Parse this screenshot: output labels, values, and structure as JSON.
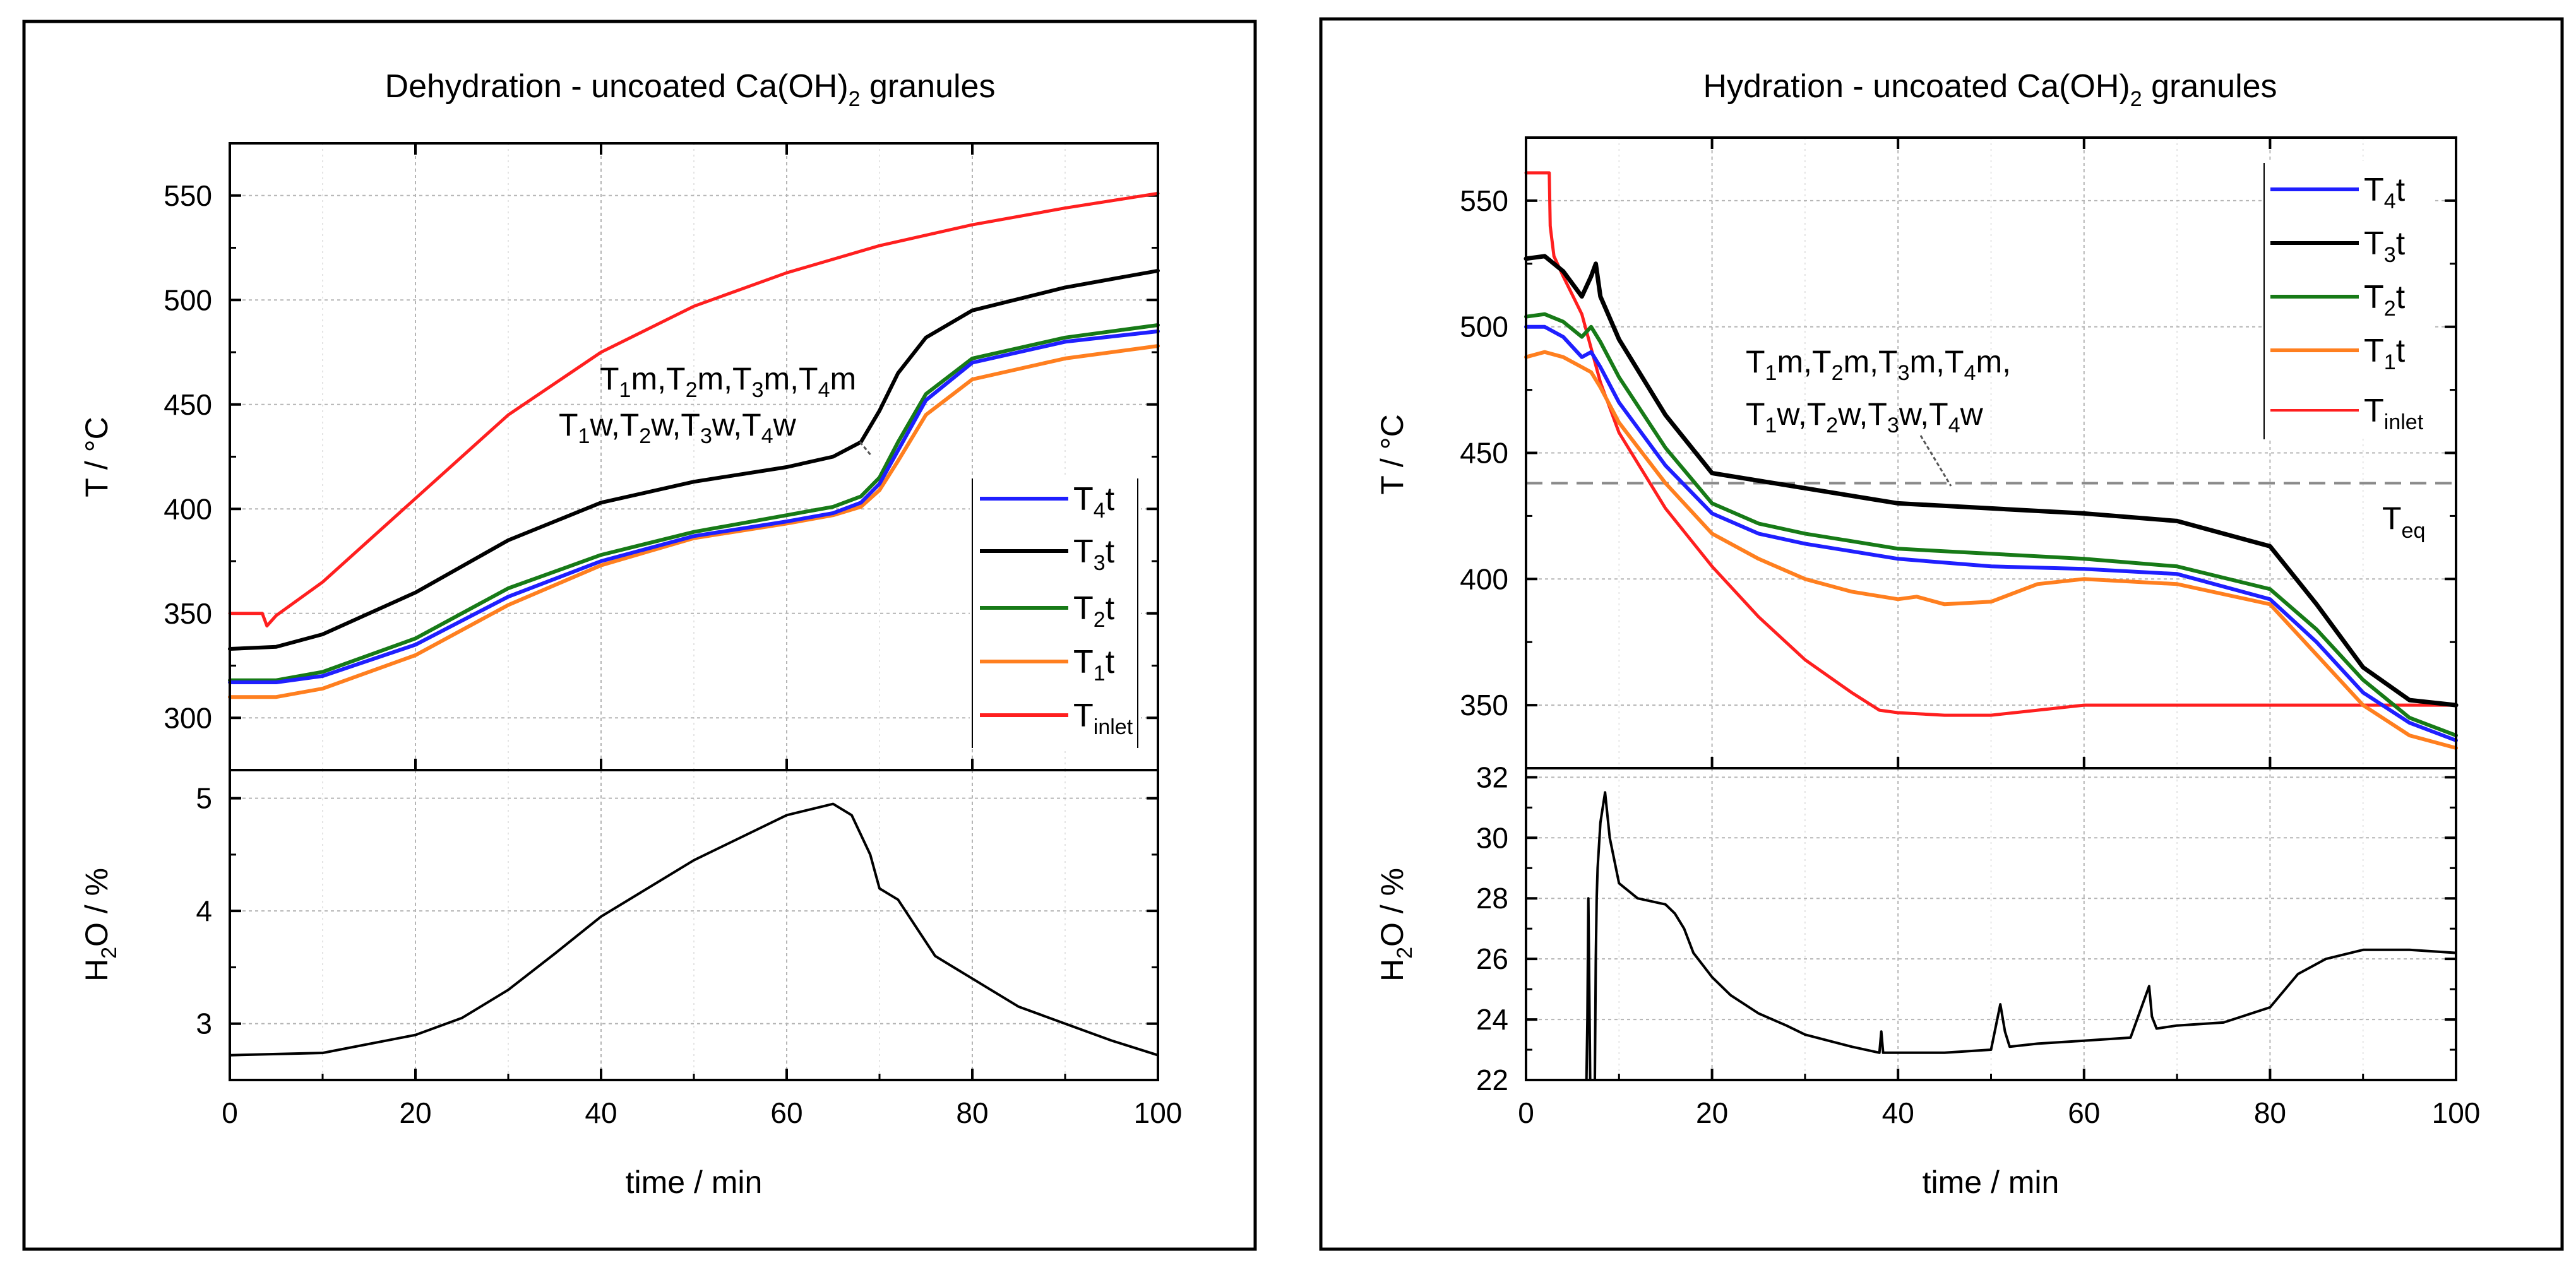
{
  "chart_data": [
    {
      "type": "line",
      "title": "Dehydration - uncoated Ca(OH)2 granules",
      "xlabel": "time / min",
      "xlim": [
        0,
        100
      ],
      "xticks": [
        0,
        20,
        40,
        60,
        80,
        100
      ],
      "panels": [
        {
          "ylabel": "T / °C",
          "ylim": [
            275,
            575
          ],
          "yticks": [
            300,
            350,
            400,
            450,
            500,
            550
          ],
          "grid": true,
          "legend_position": "middle-right",
          "annotation": {
            "line1": [
              "T1m",
              "T2m",
              "T3m",
              "T4m"
            ],
            "line2": [
              "T1w",
              "T2w",
              "T3w",
              "T4w"
            ]
          },
          "series": [
            {
              "name": "T4t",
              "color": "#1f1fff",
              "x": [
                0,
                5,
                10,
                20,
                30,
                40,
                50,
                60,
                65,
                68,
                70,
                72,
                75,
                80,
                90,
                100
              ],
              "y": [
                317,
                317,
                320,
                335,
                358,
                375,
                387,
                394,
                398,
                403,
                412,
                428,
                452,
                470,
                480,
                485
              ]
            },
            {
              "name": "T3t",
              "color": "#000000",
              "x": [
                0,
                5,
                10,
                20,
                30,
                40,
                50,
                60,
                65,
                68,
                70,
                72,
                75,
                80,
                90,
                100
              ],
              "y": [
                333,
                334,
                340,
                360,
                385,
                403,
                413,
                420,
                425,
                432,
                447,
                465,
                482,
                495,
                506,
                514
              ]
            },
            {
              "name": "T2t",
              "color": "#177a17",
              "x": [
                0,
                5,
                10,
                20,
                30,
                40,
                50,
                60,
                65,
                68,
                70,
                72,
                75,
                80,
                90,
                100
              ],
              "y": [
                318,
                318,
                322,
                338,
                362,
                378,
                389,
                397,
                401,
                406,
                415,
                432,
                455,
                472,
                482,
                488
              ]
            },
            {
              "name": "T1t",
              "color": "#ff7f1f",
              "x": [
                0,
                5,
                10,
                20,
                30,
                40,
                50,
                60,
                65,
                68,
                70,
                72,
                75,
                80,
                90,
                100
              ],
              "y": [
                310,
                310,
                314,
                330,
                354,
                373,
                386,
                393,
                397,
                401,
                409,
                423,
                445,
                462,
                472,
                478
              ]
            },
            {
              "name": "Tinlet",
              "color": "#ff1f1f",
              "x": [
                0,
                3.5,
                4,
                5,
                10,
                20,
                30,
                40,
                50,
                60,
                70,
                80,
                90,
                100
              ],
              "y": [
                350,
                350,
                344,
                349,
                365,
                405,
                445,
                475,
                497,
                513,
                526,
                536,
                544,
                551
              ]
            }
          ]
        },
        {
          "ylabel": "H2O / %",
          "ylim": [
            2.5,
            5.25
          ],
          "yticks": [
            3,
            4,
            5
          ],
          "grid": true,
          "series": [
            {
              "name": "H2O",
              "color": "#000000",
              "x": [
                0,
                10,
                20,
                25,
                30,
                35,
                40,
                50,
                60,
                65,
                67,
                69,
                70,
                71,
                72,
                74,
                76,
                78,
                79,
                80,
                82,
                85,
                90,
                95,
                100
              ],
              "y": [
                2.72,
                2.74,
                2.9,
                3.05,
                3.3,
                3.62,
                3.95,
                4.45,
                4.85,
                4.95,
                4.85,
                4.5,
                4.2,
                4.15,
                4.1,
                3.85,
                3.6,
                3.5,
                3.45,
                3.4,
                3.3,
                3.15,
                3.0,
                2.85,
                2.72
              ]
            }
          ]
        }
      ]
    },
    {
      "type": "line",
      "title": "Hydration - uncoated Ca(OH)2 granules",
      "xlabel": "time / min",
      "xlim": [
        0,
        100
      ],
      "xticks": [
        0,
        20,
        40,
        60,
        80,
        100
      ],
      "panels": [
        {
          "ylabel": "T / °C",
          "ylim": [
            325,
            575
          ],
          "yticks": [
            350,
            400,
            450,
            500,
            550
          ],
          "grid": true,
          "legend_position": "top-right",
          "reference_line": {
            "label": "Teq",
            "y": 438
          },
          "annotation": {
            "line1": [
              "T1m",
              "T2m",
              "T3m",
              "T4m"
            ],
            "line2": [
              "T1w",
              "T2w",
              "T3w",
              "T4w"
            ]
          },
          "series": [
            {
              "name": "T4t",
              "color": "#1f1fff",
              "x": [
                0,
                2,
                4,
                6,
                7,
                8,
                10,
                15,
                20,
                25,
                30,
                40,
                50,
                60,
                70,
                80,
                85,
                90,
                95,
                100
              ],
              "y": [
                500,
                500,
                496,
                488,
                490,
                484,
                470,
                445,
                426,
                418,
                414,
                408,
                405,
                404,
                402,
                392,
                375,
                355,
                343,
                336
              ]
            },
            {
              "name": "T3t",
              "color": "#000000",
              "x": [
                0,
                2,
                4,
                6,
                7,
                7.5,
                8,
                10,
                15,
                20,
                30,
                40,
                50,
                60,
                70,
                80,
                85,
                90,
                95,
                100
              ],
              "y": [
                527,
                528,
                522,
                512,
                520,
                525,
                512,
                495,
                465,
                442,
                436,
                430,
                428,
                426,
                423,
                413,
                390,
                365,
                352,
                350
              ]
            },
            {
              "name": "T2t",
              "color": "#177a17",
              "x": [
                0,
                2,
                4,
                6,
                7,
                8,
                10,
                15,
                20,
                25,
                30,
                40,
                50,
                60,
                70,
                80,
                85,
                90,
                95,
                100
              ],
              "y": [
                504,
                505,
                502,
                496,
                500,
                494,
                480,
                452,
                430,
                422,
                418,
                412,
                410,
                408,
                405,
                396,
                380,
                360,
                345,
                338
              ]
            },
            {
              "name": "T1t",
              "color": "#ff7f1f",
              "x": [
                0,
                2,
                4,
                6,
                7,
                8,
                10,
                15,
                20,
                25,
                30,
                35,
                40,
                42,
                45,
                50,
                55,
                60,
                70,
                80,
                85,
                90,
                95,
                100
              ],
              "y": [
                488,
                490,
                488,
                484,
                482,
                476,
                462,
                438,
                418,
                408,
                400,
                395,
                392,
                393,
                390,
                391,
                398,
                400,
                398,
                390,
                370,
                350,
                338,
                333
              ]
            },
            {
              "name": "Tinlet",
              "color": "#ff1f1f",
              "x": [
                0,
                2.5,
                2.6,
                3,
                4,
                6,
                8,
                10,
                15,
                20,
                25,
                30,
                35,
                38,
                40,
                45,
                50,
                55,
                60,
                70,
                80,
                90,
                100
              ],
              "y": [
                561,
                561,
                540,
                528,
                520,
                505,
                478,
                458,
                428,
                405,
                385,
                368,
                355,
                348,
                347,
                346,
                346,
                348,
                350,
                350,
                350,
                350,
                350
              ]
            }
          ]
        },
        {
          "ylabel": "H2O / %",
          "ylim": [
            22,
            32.3
          ],
          "yticks": [
            22,
            24,
            26,
            28,
            30,
            32
          ],
          "grid": true,
          "series": [
            {
              "name": "H2O",
              "color": "#000000",
              "x": [
                6.5,
                6.6,
                6.7,
                6.8,
                6.9,
                7.4,
                7.5,
                7.6,
                7.7,
                8.0,
                8.5,
                9.0,
                10,
                12,
                15,
                16,
                17,
                18,
                20,
                22,
                25,
                28,
                30,
                35,
                38,
                38.2,
                38.4,
                40,
                45,
                50,
                51,
                51.5,
                52,
                55,
                60,
                65,
                67,
                67.3,
                67.8,
                70,
                75,
                80,
                83,
                86,
                90,
                95,
                100
              ],
              "y": [
                22,
                24,
                28,
                25,
                22,
                22,
                26,
                28,
                29,
                30.5,
                31.5,
                30,
                28.5,
                28,
                27.8,
                27.5,
                27,
                26.2,
                25.4,
                24.8,
                24.2,
                23.8,
                23.5,
                23.1,
                22.9,
                23.6,
                22.9,
                22.9,
                22.9,
                23.0,
                24.5,
                23.6,
                23.1,
                23.2,
                23.3,
                23.4,
                25.1,
                24.1,
                23.7,
                23.8,
                23.9,
                24.4,
                25.5,
                26.0,
                26.3,
                26.3,
                26.2
              ]
            }
          ]
        }
      ]
    }
  ]
}
